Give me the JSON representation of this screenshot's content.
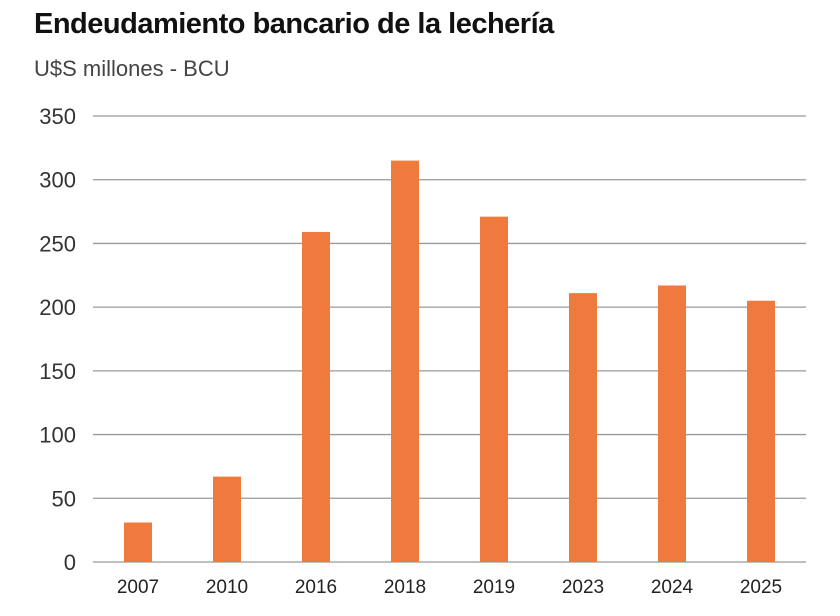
{
  "chart_data": {
    "type": "bar",
    "title": "Endeudamiento bancario de la lechería",
    "subtitle": "U$S millones - BCU",
    "xlabel": "",
    "ylabel": "",
    "categories": [
      "2007",
      "2010",
      "2016",
      "2018",
      "2019",
      "2023",
      "2024",
      "2025"
    ],
    "values": [
      31,
      67,
      259,
      315,
      271,
      211,
      217,
      205
    ],
    "ylim": [
      0,
      350
    ],
    "yticks": [
      "0",
      "50",
      "100",
      "150",
      "200",
      "250",
      "300",
      "350"
    ],
    "grid": true,
    "bar_color": "#F07A3E",
    "grid_color": "#999999"
  }
}
